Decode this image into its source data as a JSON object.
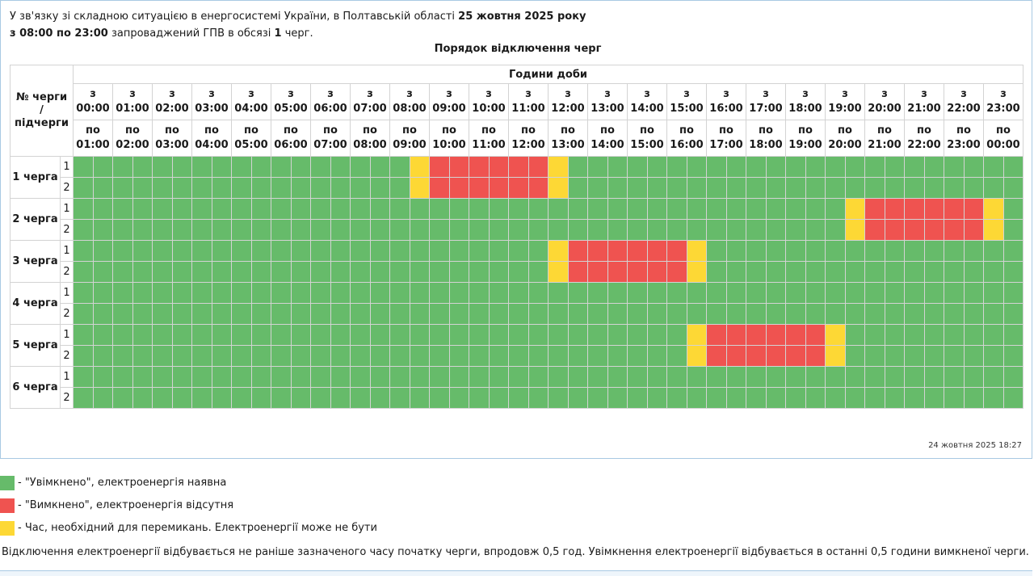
{
  "intro": {
    "l1_pre": "У зв'язку зі складною ситуацією в енергосистемі України, в Полтавській області ",
    "l1_date": "25 жовтня 2025 року",
    "l2_time": "з 08:00 по 23:00",
    "l2_mid": " запроваджений ГПВ в обсязі ",
    "l2_count": "1",
    "l2_post": " черг."
  },
  "schedule": {
    "title": "Порядок відключення черг",
    "queue_header": [
      "№ черги",
      "/",
      "підчерги"
    ],
    "hours_header": "Години доби",
    "from_label": "з",
    "to_label": "по",
    "hours": [
      "00:00",
      "01:00",
      "02:00",
      "03:00",
      "04:00",
      "05:00",
      "06:00",
      "07:00",
      "08:00",
      "09:00",
      "10:00",
      "11:00",
      "12:00",
      "13:00",
      "14:00",
      "15:00",
      "16:00",
      "17:00",
      "18:00",
      "19:00",
      "20:00",
      "21:00",
      "22:00",
      "23:00"
    ],
    "hours_to": [
      "01:00",
      "02:00",
      "03:00",
      "04:00",
      "05:00",
      "06:00",
      "07:00",
      "08:00",
      "09:00",
      "10:00",
      "11:00",
      "12:00",
      "13:00",
      "14:00",
      "15:00",
      "16:00",
      "17:00",
      "18:00",
      "19:00",
      "20:00",
      "21:00",
      "22:00",
      "23:00",
      "00:00"
    ],
    "queues": [
      {
        "name": "1 черга",
        "subs": [
          "1",
          "2"
        ],
        "maybe": [
          17,
          24
        ],
        "off": [
          18,
          19,
          20,
          21,
          22,
          23
        ]
      },
      {
        "name": "2 черга",
        "subs": [
          "1",
          "2"
        ],
        "maybe": [
          39,
          46
        ],
        "off": [
          40,
          41,
          42,
          43,
          44,
          45
        ]
      },
      {
        "name": "3 черга",
        "subs": [
          "1",
          "2"
        ],
        "maybe": [
          24,
          31
        ],
        "off": [
          25,
          26,
          27,
          28,
          29,
          30
        ]
      },
      {
        "name": "4 черга",
        "subs": [
          "1",
          "2"
        ],
        "maybe": [],
        "off": []
      },
      {
        "name": "5 черга",
        "subs": [
          "1",
          "2"
        ],
        "maybe": [
          31,
          38
        ],
        "off": [
          32,
          33,
          34,
          35,
          36,
          37
        ]
      },
      {
        "name": "6 черга",
        "subs": [
          "1",
          "2"
        ],
        "maybe": [],
        "off": []
      }
    ]
  },
  "timestamp": "24 жовтня 2025 18:27",
  "legend": [
    {
      "color": "#66bb6a",
      "text": "- \"Увімкнено\", електроенергія наявна"
    },
    {
      "color": "#ef5350",
      "text": "- \"Вимкнено\", електроенергія відсутня"
    },
    {
      "color": "#fdd835",
      "text": "- Час, необхідний для перемикань. Електроенергії може не бути"
    }
  ],
  "note": "Відключення електроенергії відбувається не раніше зазначеного часу початку черги, впродовж 0,5 год. Увімкнення електроенергії відбувається в останні 0,5 години вимкненої черги."
}
